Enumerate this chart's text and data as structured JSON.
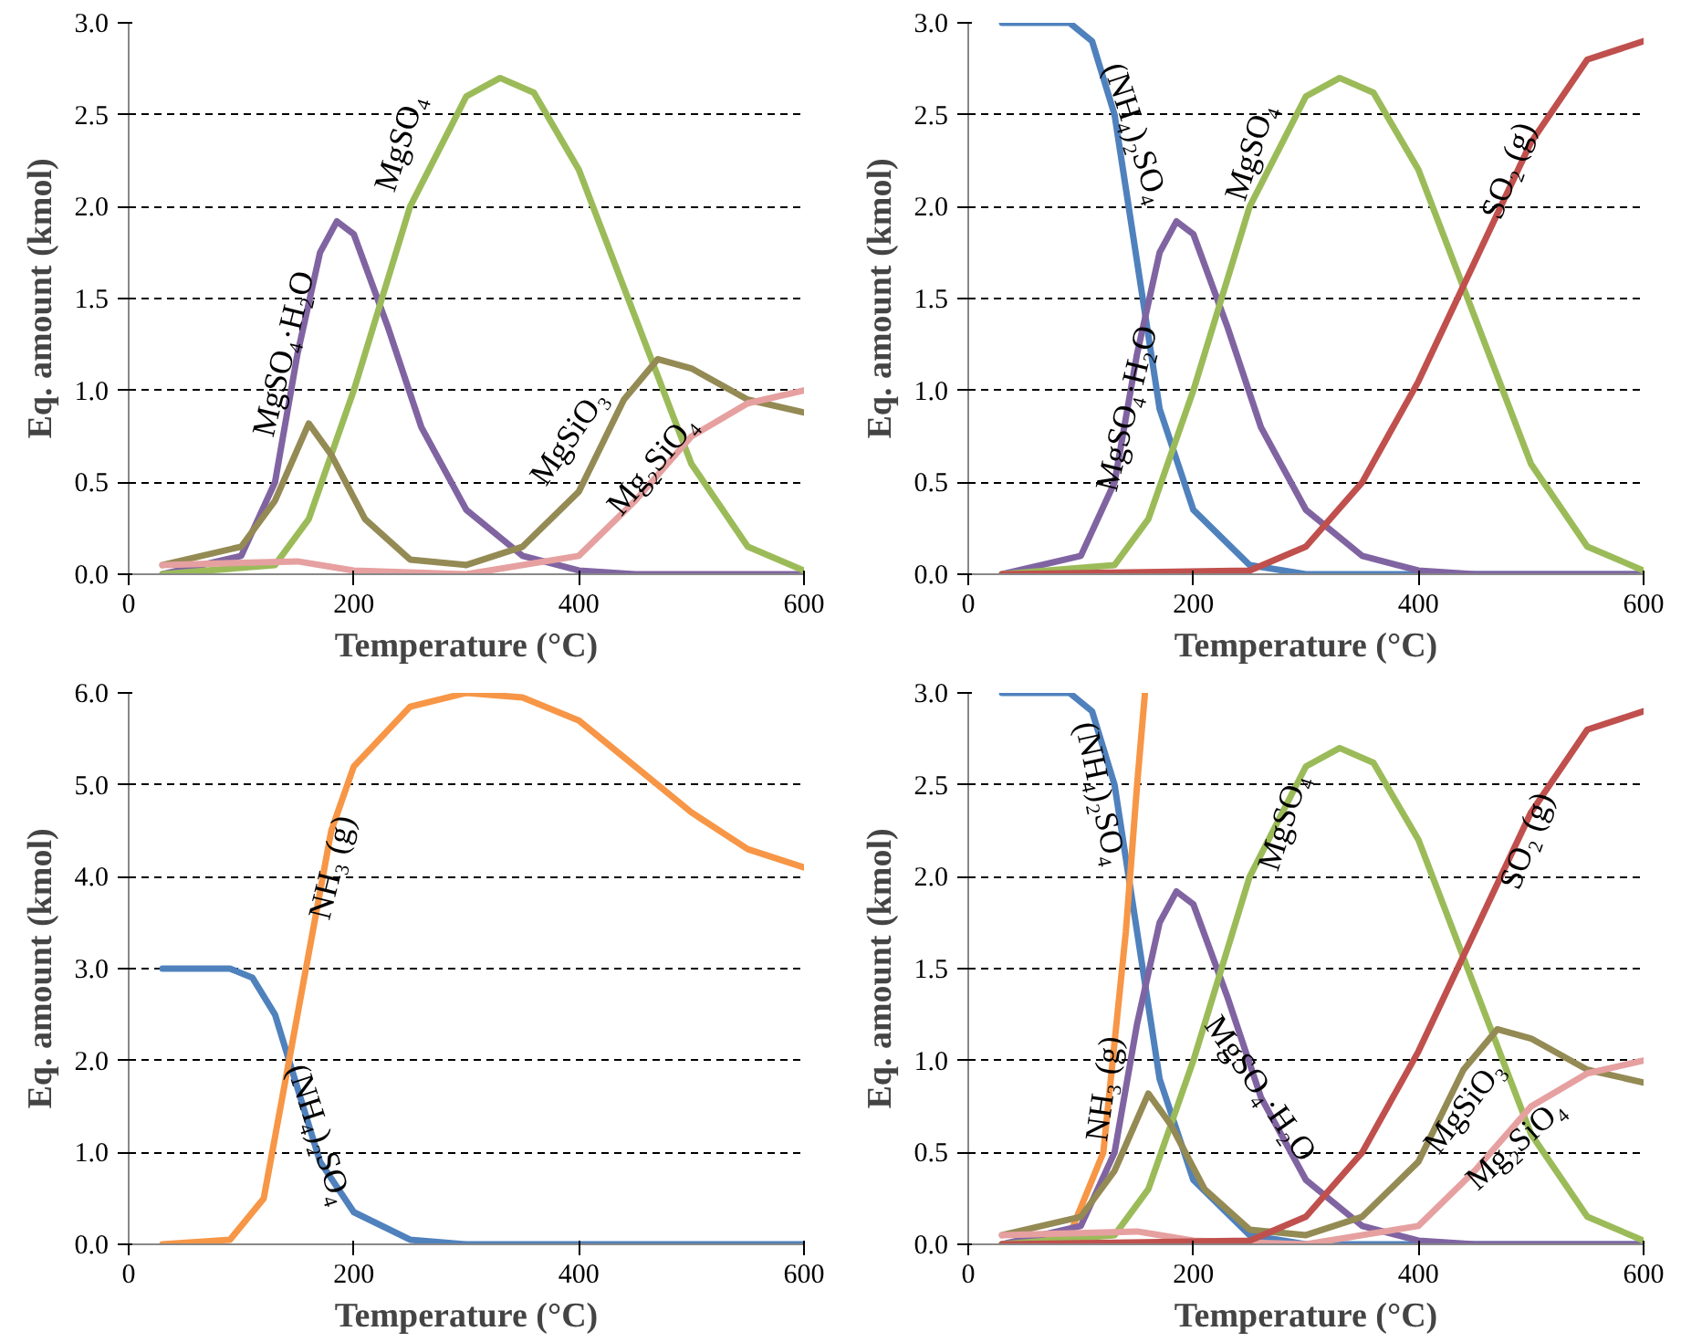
{
  "chart_data": [
    {
      "type": "line",
      "xlabel": "Temperature (°C)",
      "ylabel": "Eq. amount (kmol)",
      "xlim": [
        0,
        600
      ],
      "ylim": [
        0,
        3
      ],
      "xticks": [
        0,
        200,
        400,
        600
      ],
      "yticks": [
        {
          "value": 0,
          "label": "0.0"
        },
        {
          "value": 0.5,
          "label": "0.5"
        },
        {
          "value": 1,
          "label": "1.0"
        },
        {
          "value": 1.5,
          "label": "1.5"
        },
        {
          "value": 2,
          "label": "2.0"
        },
        {
          "value": 2.5,
          "label": "2.5"
        },
        {
          "value": 3,
          "label": "3.0"
        }
      ],
      "grid": "y",
      "line_style": "solid",
      "marker": "none",
      "series": [
        {
          "name": "MgSO₄·H₂O",
          "color": "#8064a2",
          "x": [
            30,
            100,
            130,
            150,
            170,
            185,
            200,
            230,
            260,
            300,
            350,
            400,
            450,
            600
          ],
          "values": [
            0,
            0.1,
            0.5,
            1.2,
            1.75,
            1.92,
            1.85,
            1.35,
            0.8,
            0.35,
            0.1,
            0.02,
            0,
            0
          ]
        },
        {
          "name": "MgSO₄",
          "color": "#9bbb59",
          "x": [
            30,
            130,
            160,
            200,
            250,
            300,
            330,
            360,
            400,
            450,
            500,
            550,
            600
          ],
          "values": [
            0,
            0.05,
            0.3,
            1.0,
            2.0,
            2.6,
            2.7,
            2.62,
            2.2,
            1.4,
            0.6,
            0.15,
            0.02
          ]
        },
        {
          "name": "MgSiO₃",
          "color": "#948a54",
          "x": [
            30,
            100,
            130,
            160,
            180,
            210,
            250,
            300,
            350,
            400,
            440,
            470,
            500,
            550,
            600
          ],
          "values": [
            0.05,
            0.15,
            0.4,
            0.82,
            0.65,
            0.3,
            0.08,
            0.05,
            0.15,
            0.45,
            0.95,
            1.17,
            1.12,
            0.95,
            0.88
          ]
        },
        {
          "name": "Mg₂SiO₄",
          "color": "#e6a0a0",
          "x": [
            30,
            150,
            200,
            300,
            400,
            450,
            500,
            550,
            600
          ],
          "values": [
            0.05,
            0.07,
            0.02,
            0,
            0.1,
            0.4,
            0.75,
            0.93,
            1.0
          ]
        }
      ]
    },
    {
      "type": "line",
      "xlabel": "Temperature (°C)",
      "ylabel": "Eq. amount (kmol)",
      "xlim": [
        0,
        600
      ],
      "ylim": [
        0,
        3
      ],
      "xticks": [
        0,
        200,
        400,
        600
      ],
      "yticks": [
        {
          "value": 0,
          "label": "0.0"
        },
        {
          "value": 0.5,
          "label": "0.5"
        },
        {
          "value": 1,
          "label": "1.0"
        },
        {
          "value": 1.5,
          "label": "1.5"
        },
        {
          "value": 2,
          "label": "2.0"
        },
        {
          "value": 2.5,
          "label": "2.5"
        },
        {
          "value": 3,
          "label": "3.0"
        }
      ],
      "grid": "y",
      "line_style": "solid",
      "marker": "none",
      "series": [
        {
          "name": "(NH₄)₂SO₄",
          "color": "#4f81bd",
          "x": [
            30,
            90,
            110,
            130,
            150,
            170,
            200,
            250,
            300,
            600
          ],
          "values": [
            3.0,
            3.0,
            2.9,
            2.5,
            1.7,
            0.9,
            0.35,
            0.05,
            0,
            0
          ]
        },
        {
          "name": "MgSO₄·H₂O",
          "color": "#8064a2",
          "x": [
            30,
            100,
            130,
            150,
            170,
            185,
            200,
            230,
            260,
            300,
            350,
            400,
            450,
            600
          ],
          "values": [
            0,
            0.1,
            0.5,
            1.2,
            1.75,
            1.92,
            1.85,
            1.35,
            0.8,
            0.35,
            0.1,
            0.02,
            0,
            0
          ]
        },
        {
          "name": "MgSO₄",
          "color": "#9bbb59",
          "x": [
            30,
            130,
            160,
            200,
            250,
            300,
            330,
            360,
            400,
            450,
            500,
            550,
            600
          ],
          "values": [
            0,
            0.05,
            0.3,
            1.0,
            2.0,
            2.6,
            2.7,
            2.62,
            2.2,
            1.4,
            0.6,
            0.15,
            0.02
          ]
        },
        {
          "name": "SO₂ (g)",
          "color": "#c0504d",
          "x": [
            30,
            250,
            300,
            350,
            400,
            450,
            500,
            550,
            600
          ],
          "values": [
            0,
            0.02,
            0.15,
            0.5,
            1.05,
            1.7,
            2.35,
            2.8,
            2.9
          ]
        }
      ]
    },
    {
      "type": "line",
      "xlabel": "Temperature (°C)",
      "ylabel": "Eq. amount (kmol)",
      "xlim": [
        0,
        600
      ],
      "ylim": [
        0,
        6
      ],
      "xticks": [
        0,
        200,
        400,
        600
      ],
      "yticks": [
        {
          "value": 0,
          "label": "0.0"
        },
        {
          "value": 1,
          "label": "1.0"
        },
        {
          "value": 2,
          "label": "2.0"
        },
        {
          "value": 3,
          "label": "3.0"
        },
        {
          "value": 4,
          "label": "4.0"
        },
        {
          "value": 5,
          "label": "5.0"
        },
        {
          "value": 6,
          "label": "6.0"
        }
      ],
      "grid": "y",
      "line_style": "solid",
      "marker": "none",
      "series": [
        {
          "name": "(NH₄)₂SO₄",
          "color": "#4f81bd",
          "x": [
            30,
            90,
            110,
            130,
            150,
            170,
            200,
            250,
            300,
            600
          ],
          "values": [
            3.0,
            3.0,
            2.9,
            2.5,
            1.7,
            0.9,
            0.35,
            0.05,
            0,
            0
          ]
        },
        {
          "name": "NH₃ (g)",
          "color": "#f79646",
          "x": [
            30,
            90,
            120,
            150,
            180,
            200,
            250,
            300,
            350,
            400,
            450,
            500,
            550,
            600
          ],
          "values": [
            0,
            0.05,
            0.5,
            2.5,
            4.5,
            5.2,
            5.85,
            6.0,
            5.95,
            5.7,
            5.2,
            4.7,
            4.3,
            4.1
          ]
        }
      ]
    },
    {
      "type": "line",
      "xlabel": "Temperature (°C)",
      "ylabel": "Eq. amount (kmol)",
      "xlim": [
        0,
        600
      ],
      "ylim": [
        0,
        3
      ],
      "xticks": [
        0,
        200,
        400,
        600
      ],
      "yticks": [
        {
          "value": 0,
          "label": "0.0"
        },
        {
          "value": 0.5,
          "label": "0.5"
        },
        {
          "value": 1,
          "label": "1.0"
        },
        {
          "value": 1.5,
          "label": "1.5"
        },
        {
          "value": 2,
          "label": "2.0"
        },
        {
          "value": 2.5,
          "label": "2.5"
        },
        {
          "value": 3,
          "label": "3.0"
        }
      ],
      "grid": "y",
      "line_style": "solid",
      "marker": "none",
      "series": [
        {
          "name": "(NH₄)₂SO₄",
          "color": "#4f81bd",
          "x": [
            30,
            90,
            110,
            130,
            150,
            170,
            200,
            250,
            300,
            600
          ],
          "values": [
            3.0,
            3.0,
            2.9,
            2.5,
            1.7,
            0.9,
            0.35,
            0.05,
            0,
            0
          ]
        },
        {
          "name": "NH₃ (g)",
          "color": "#f79646",
          "x": [
            30,
            90,
            120,
            140,
            150,
            157
          ],
          "values": [
            0,
            0.05,
            0.5,
            1.7,
            2.5,
            3.0
          ]
        },
        {
          "name": "MgSO₄·H₂O",
          "color": "#8064a2",
          "x": [
            30,
            100,
            130,
            150,
            170,
            185,
            200,
            230,
            260,
            300,
            350,
            400,
            450,
            600
          ],
          "values": [
            0,
            0.1,
            0.5,
            1.2,
            1.75,
            1.92,
            1.85,
            1.35,
            0.8,
            0.35,
            0.1,
            0.02,
            0,
            0
          ]
        },
        {
          "name": "MgSO₄",
          "color": "#9bbb59",
          "x": [
            30,
            130,
            160,
            200,
            250,
            300,
            330,
            360,
            400,
            450,
            500,
            550,
            600
          ],
          "values": [
            0,
            0.05,
            0.3,
            1.0,
            2.0,
            2.6,
            2.7,
            2.62,
            2.2,
            1.4,
            0.6,
            0.15,
            0.02
          ]
        },
        {
          "name": "MgSiO₃",
          "color": "#948a54",
          "x": [
            30,
            100,
            130,
            160,
            180,
            210,
            250,
            300,
            350,
            400,
            440,
            470,
            500,
            550,
            600
          ],
          "values": [
            0.05,
            0.15,
            0.4,
            0.82,
            0.65,
            0.3,
            0.08,
            0.05,
            0.15,
            0.45,
            0.95,
            1.17,
            1.12,
            0.95,
            0.88
          ]
        },
        {
          "name": "Mg₂SiO₄",
          "color": "#e6a0a0",
          "x": [
            30,
            150,
            200,
            300,
            400,
            450,
            500,
            550,
            600
          ],
          "values": [
            0.05,
            0.07,
            0.02,
            0,
            0.1,
            0.4,
            0.75,
            0.93,
            1.0
          ]
        },
        {
          "name": "SO₂ (g)",
          "color": "#c0504d",
          "x": [
            30,
            250,
            300,
            350,
            400,
            450,
            500,
            550,
            600
          ],
          "values": [
            0,
            0.02,
            0.15,
            0.5,
            1.05,
            1.7,
            2.35,
            2.8,
            2.9
          ]
        }
      ]
    }
  ]
}
